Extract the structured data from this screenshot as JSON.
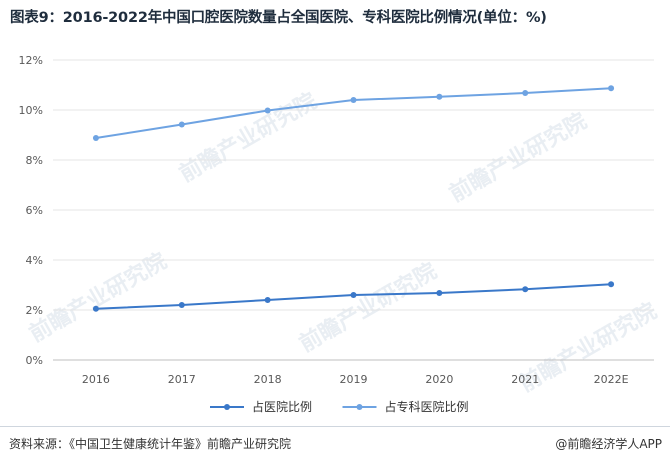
{
  "header": {
    "title": "图表9：2016-2022年中国口腔医院数量占全国医院、专科医院比例情况(单位：%)"
  },
  "footer": {
    "source": "资料来源：《中国卫生健康统计年鉴》前瞻产业研究院",
    "brand": "@前瞻经济学人APP"
  },
  "watermark": {
    "text": "前瞻产业研究院"
  },
  "colors": {
    "series1": "#3a78c9",
    "series2": "#6ea3e2",
    "grid": "#e4e4e4",
    "axis": "#bfbfbf",
    "tick_text": "#595959"
  },
  "chart_data": {
    "type": "line",
    "categories": [
      "2016",
      "2017",
      "2018",
      "2019",
      "2020",
      "2021",
      "2022E"
    ],
    "ylim": [
      0,
      12
    ],
    "yticks": [
      0,
      2,
      4,
      6,
      8,
      10,
      12
    ],
    "ytick_labels": [
      "0%",
      "2%",
      "4%",
      "6%",
      "8%",
      "10%",
      "12%"
    ],
    "grid": true,
    "legend_position": "bottom-center",
    "series": [
      {
        "name": "占医院比例",
        "values": [
          2.05,
          2.2,
          2.4,
          2.6,
          2.68,
          2.83,
          3.03
        ]
      },
      {
        "name": "占专科医院比例",
        "values": [
          8.88,
          9.42,
          9.98,
          10.4,
          10.53,
          10.68,
          10.87
        ]
      }
    ]
  }
}
